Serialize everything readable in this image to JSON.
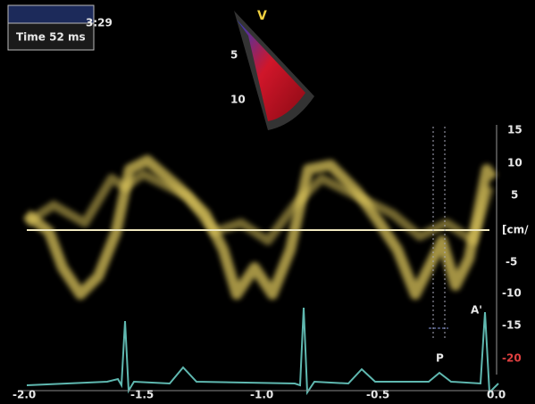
{
  "header": {
    "time_label": "Time 52 ms",
    "clock": "3:29",
    "sector_label": "V",
    "depth_marks": [
      "5",
      "10"
    ]
  },
  "velocity_axis": {
    "labels": [
      "15",
      "10",
      "5",
      "[cm/",
      "-5",
      "-10",
      "-15",
      "-20"
    ]
  },
  "time_axis": {
    "labels": [
      "-2.0",
      "-1.5",
      "-1.0",
      "-0.5",
      "0.0"
    ]
  },
  "annotations": {
    "a_wave": "A'",
    "p_wave": "P"
  }
}
